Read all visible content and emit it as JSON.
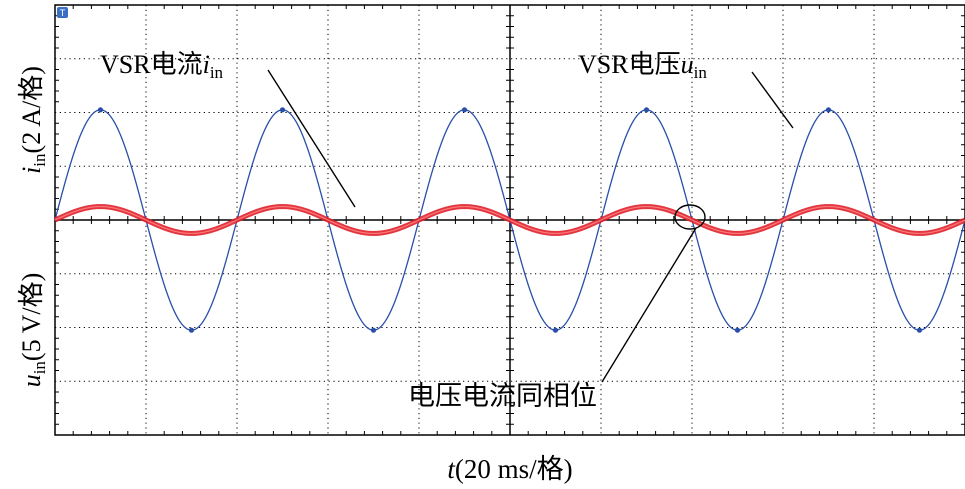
{
  "chart_data": {
    "type": "line",
    "ylabel_top": {
      "var": "i",
      "sub": "in",
      "unit": "(2 A/格)"
    },
    "ylabel_bottom": {
      "var": "u",
      "sub": "in",
      "unit": "(5 V/格)"
    },
    "xlabel": {
      "var": "t",
      "unit": "(20 ms/格)"
    },
    "grid": true,
    "grid_divisions": {
      "x": 10,
      "y": 8
    },
    "x_range_divisions": [
      0,
      10
    ],
    "y_range_divisions": [
      -4,
      4
    ],
    "series": [
      {
        "name": "u_in",
        "color": "#2a4fa8",
        "amplitude_div": 2.05,
        "cycles_per_div": 0.5,
        "phase_deg": 0
      },
      {
        "name": "i_in",
        "color": "#e0202a",
        "amplitude_div": 0.25,
        "cycles_per_div": 0.5,
        "phase_deg": 0
      }
    ],
    "annotations": [
      {
        "id": "current",
        "prefix": "VSR电流",
        "var": "i",
        "sub": "in"
      },
      {
        "id": "voltage",
        "prefix": "VSR电压",
        "var": "u",
        "sub": "in"
      },
      {
        "id": "inphase",
        "text": "电压电流同相位"
      }
    ],
    "trigger_marker": "T"
  }
}
